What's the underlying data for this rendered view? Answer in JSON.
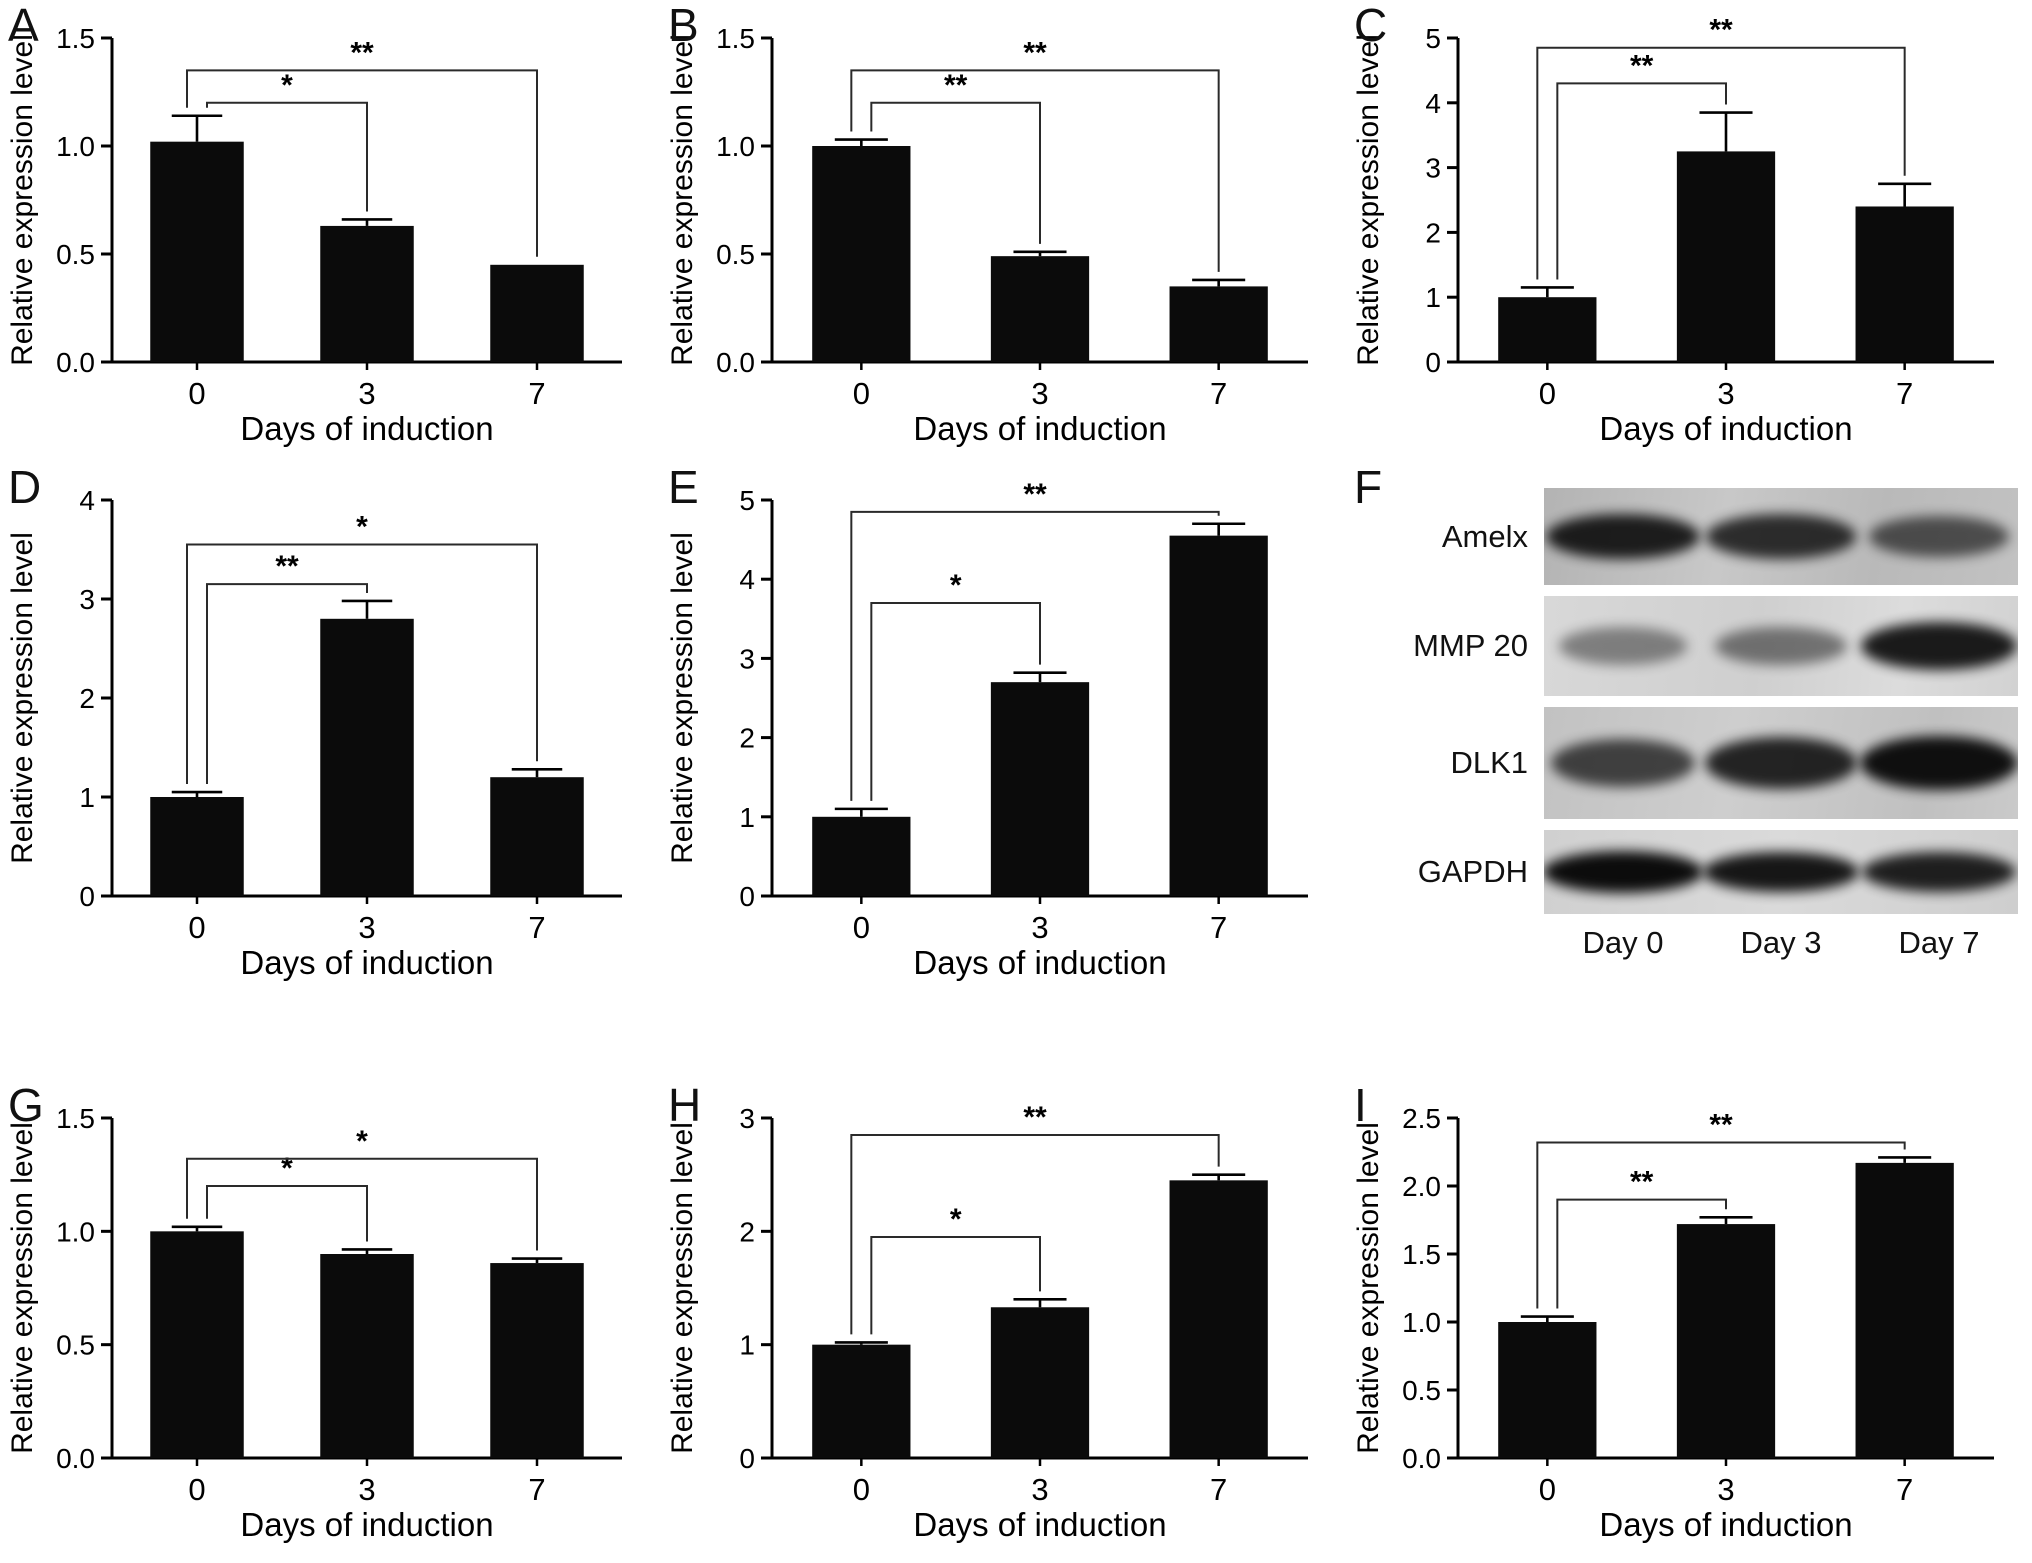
{
  "chart_data": [
    {
      "panel": "A",
      "type": "bar",
      "categories": [
        "0",
        "3",
        "7"
      ],
      "values": [
        1.02,
        0.63,
        0.45
      ],
      "errors": [
        0.12,
        0.03,
        0
      ],
      "title": "",
      "xlabel": "Days of induction",
      "ylabel": "Relative expression level",
      "ylim": [
        0,
        1.5
      ],
      "yticks": [
        0,
        0.5,
        1,
        1.5
      ],
      "ytick_labels": [
        "0.0",
        "0.5",
        "1.0",
        "1.5"
      ],
      "significance": [
        {
          "from": 0,
          "to": 1,
          "label": "*",
          "y": 1.2
        },
        {
          "from": 0,
          "to": 2,
          "label": "**",
          "y": 1.35
        }
      ]
    },
    {
      "panel": "B",
      "type": "bar",
      "categories": [
        "0",
        "3",
        "7"
      ],
      "values": [
        1.0,
        0.49,
        0.35
      ],
      "errors": [
        0.03,
        0.02,
        0.03
      ],
      "title": "",
      "xlabel": "Days of induction",
      "ylabel": "Relative expression level",
      "ylim": [
        0,
        1.5
      ],
      "yticks": [
        0,
        0.5,
        1,
        1.5
      ],
      "ytick_labels": [
        "0.0",
        "0.5",
        "1.0",
        "1.5"
      ],
      "significance": [
        {
          "from": 0,
          "to": 1,
          "label": "**",
          "y": 1.2
        },
        {
          "from": 0,
          "to": 2,
          "label": "**",
          "y": 1.35
        }
      ]
    },
    {
      "panel": "C",
      "type": "bar",
      "categories": [
        "0",
        "3",
        "7"
      ],
      "values": [
        1.0,
        3.25,
        2.4
      ],
      "errors": [
        0.15,
        0.6,
        0.35
      ],
      "title": "",
      "xlabel": "Days of induction",
      "ylabel": "Relative expression level",
      "ylim": [
        0,
        5
      ],
      "yticks": [
        0,
        1,
        2,
        3,
        4,
        5
      ],
      "ytick_labels": [
        "0",
        "1",
        "2",
        "3",
        "4",
        "5"
      ],
      "significance": [
        {
          "from": 0,
          "to": 1,
          "label": "**",
          "y": 4.3
        },
        {
          "from": 0,
          "to": 2,
          "label": "**",
          "y": 4.85
        }
      ]
    },
    {
      "panel": "D",
      "type": "bar",
      "categories": [
        "0",
        "3",
        "7"
      ],
      "values": [
        1.0,
        2.8,
        1.2
      ],
      "errors": [
        0.05,
        0.18,
        0.08
      ],
      "title": "",
      "xlabel": "Days of induction",
      "ylabel": "Relative expression level",
      "ylim": [
        0,
        4
      ],
      "yticks": [
        0,
        1,
        2,
        3,
        4
      ],
      "ytick_labels": [
        "0",
        "1",
        "2",
        "3",
        "4"
      ],
      "significance": [
        {
          "from": 0,
          "to": 1,
          "label": "**",
          "y": 3.15
        },
        {
          "from": 0,
          "to": 2,
          "label": "*",
          "y": 3.55
        }
      ]
    },
    {
      "panel": "E",
      "type": "bar",
      "categories": [
        "0",
        "3",
        "7"
      ],
      "values": [
        1.0,
        2.7,
        4.55
      ],
      "errors": [
        0.1,
        0.12,
        0.15
      ],
      "title": "",
      "xlabel": "Days of induction",
      "ylabel": "Relative expression level",
      "ylim": [
        0,
        5
      ],
      "yticks": [
        0,
        1,
        2,
        3,
        4,
        5
      ],
      "ytick_labels": [
        "0",
        "1",
        "2",
        "3",
        "4",
        "5"
      ],
      "significance": [
        {
          "from": 0,
          "to": 1,
          "label": "*",
          "y": 3.7
        },
        {
          "from": 0,
          "to": 2,
          "label": "**",
          "y": 4.85
        }
      ]
    },
    {
      "panel": "F",
      "type": "western_blot",
      "rows": [
        {
          "label": "Amelx",
          "band_intensities": [
            0.88,
            0.8,
            0.62
          ]
        },
        {
          "label": "MMP 20",
          "band_intensities": [
            0.42,
            0.48,
            0.9
          ]
        },
        {
          "label": "DLK1",
          "band_intensities": [
            0.7,
            0.85,
            0.95
          ]
        },
        {
          "label": "GAPDH",
          "band_intensities": [
            0.97,
            0.92,
            0.88
          ]
        }
      ],
      "lane_labels": [
        "Day 0",
        "Day 3",
        "Day 7"
      ]
    },
    {
      "panel": "G",
      "type": "bar",
      "categories": [
        "0",
        "3",
        "7"
      ],
      "values": [
        1.0,
        0.9,
        0.86
      ],
      "errors": [
        0.02,
        0.02,
        0.02
      ],
      "title": "",
      "xlabel": "Days of induction",
      "ylabel": "Relative expression level",
      "ylim": [
        0,
        1.5
      ],
      "yticks": [
        0,
        0.5,
        1,
        1.5
      ],
      "ytick_labels": [
        "0.0",
        "0.5",
        "1.0",
        "1.5"
      ],
      "significance": [
        {
          "from": 0,
          "to": 1,
          "label": "*",
          "y": 1.2
        },
        {
          "from": 0,
          "to": 2,
          "label": "*",
          "y": 1.32
        }
      ]
    },
    {
      "panel": "H",
      "type": "bar",
      "categories": [
        "0",
        "3",
        "7"
      ],
      "values": [
        1.0,
        1.33,
        2.45
      ],
      "errors": [
        0.02,
        0.07,
        0.05
      ],
      "title": "",
      "xlabel": "Days of induction",
      "ylabel": "Relative expression level",
      "ylim": [
        0,
        3
      ],
      "yticks": [
        0,
        1,
        2,
        3
      ],
      "ytick_labels": [
        "0",
        "1",
        "2",
        "3"
      ],
      "significance": [
        {
          "from": 0,
          "to": 1,
          "label": "*",
          "y": 1.95
        },
        {
          "from": 0,
          "to": 2,
          "label": "**",
          "y": 2.85
        }
      ]
    },
    {
      "panel": "I",
      "type": "bar",
      "categories": [
        "0",
        "3",
        "7"
      ],
      "values": [
        1.0,
        1.72,
        2.17
      ],
      "errors": [
        0.04,
        0.05,
        0.04
      ],
      "title": "",
      "xlabel": "Days of induction",
      "ylabel": "Relative expression level",
      "ylim": [
        0,
        2.5
      ],
      "yticks": [
        0,
        0.5,
        1,
        1.5,
        2,
        2.5
      ],
      "ytick_labels": [
        "0.0",
        "0.5",
        "1.0",
        "1.5",
        "2.0",
        "2.5"
      ],
      "significance": [
        {
          "from": 0,
          "to": 1,
          "label": "**",
          "y": 1.9
        },
        {
          "from": 0,
          "to": 2,
          "label": "**",
          "y": 2.32
        }
      ]
    }
  ]
}
